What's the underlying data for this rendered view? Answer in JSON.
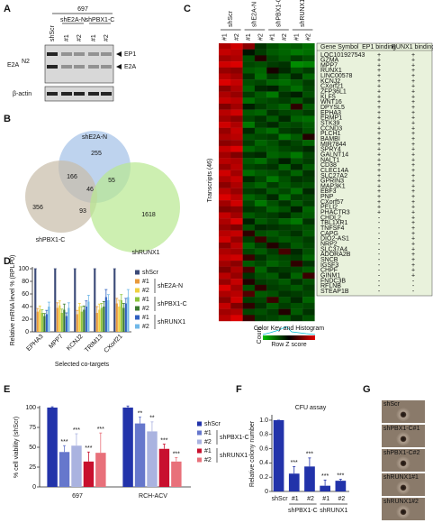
{
  "panel_labels": [
    "A",
    "B",
    "C",
    "D",
    "E",
    "F",
    "G"
  ],
  "blot": {
    "cell_line": "697",
    "lanes": [
      "shScr",
      "#1",
      "#2",
      "#1",
      "#2"
    ],
    "groups": [
      "shE2A-N",
      "shPBX1-C"
    ],
    "protein": "E2A",
    "protein_sup": "N2",
    "bands": [
      "EP1",
      "E2A"
    ],
    "loading": "β-actin"
  },
  "venn": {
    "sets": [
      "shE2A-N",
      "shPBX1-C",
      "shRUNX1"
    ],
    "counts": [
      255,
      166,
      55,
      46,
      356,
      93,
      1618
    ]
  },
  "heatmap": {
    "groups": [
      "shScr",
      "shE2A-N",
      "shPBX1-C",
      "shRUNX1"
    ],
    "replicates": [
      "#1",
      "#2",
      "#1",
      "#2",
      "#1",
      "#2",
      "#1",
      "#2"
    ],
    "ylabel": "Transcripts (46)",
    "key_title": "Color Key and Histogram",
    "key_ylabel": "Count",
    "key_xlabel": "Row Z score",
    "values": [
      [
        1.5,
        1.8,
        1.2,
        -0.5,
        -0.8,
        -1.0,
        -0.9,
        -1.1
      ],
      [
        1.7,
        1.6,
        -0.2,
        -0.6,
        -0.9,
        -1.0,
        -1.2,
        -1.1
      ],
      [
        1.4,
        1.5,
        -0.8,
        0.3,
        -0.7,
        -0.9,
        -0.6,
        -0.8
      ],
      [
        1.8,
        1.9,
        -0.7,
        -0.8,
        -0.6,
        -0.5,
        -1.4,
        -1.3
      ],
      [
        1.3,
        1.2,
        -0.9,
        -1.0,
        0.2,
        -0.4,
        -0.8,
        -0.6
      ],
      [
        1.6,
        1.4,
        -0.5,
        -1.1,
        -0.6,
        -0.9,
        -0.4,
        -1.0
      ],
      [
        1.9,
        1.7,
        -0.8,
        -0.7,
        -1.0,
        -1.1,
        -0.9,
        -0.6
      ],
      [
        1.2,
        1.5,
        -1.0,
        -0.4,
        -0.3,
        -0.8,
        -1.1,
        -0.7
      ],
      [
        1.5,
        1.3,
        -0.6,
        -0.9,
        -1.2,
        -0.5,
        -0.3,
        -0.8
      ],
      [
        1.7,
        1.6,
        -1.1,
        -0.8,
        -0.7,
        -0.6,
        -0.9,
        -0.5
      ],
      [
        1.1,
        1.4,
        -0.3,
        -0.6,
        -0.8,
        -1.0,
        0.4,
        -0.9
      ],
      [
        1.6,
        1.8,
        -0.9,
        -1.0,
        -0.5,
        -0.7,
        -0.8,
        -0.6
      ],
      [
        1.4,
        1.2,
        -0.7,
        -0.5,
        -0.9,
        -0.4,
        -1.0,
        -1.1
      ],
      [
        1.8,
        1.5,
        -1.2,
        -0.6,
        -0.4,
        -0.8,
        -0.7,
        -0.9
      ],
      [
        1.3,
        1.7,
        -0.4,
        -0.9,
        -1.1,
        -0.6,
        -0.5,
        -0.8
      ],
      [
        1.5,
        1.6,
        -0.8,
        -0.7,
        -0.6,
        -1.2,
        -0.9,
        0.3
      ],
      [
        1.2,
        1.3,
        -0.6,
        -1.0,
        -0.8,
        -0.5,
        -0.7,
        -1.0
      ],
      [
        1.7,
        1.9,
        -1.0,
        -0.8,
        -0.9,
        -0.7,
        -0.6,
        -0.4
      ],
      [
        1.4,
        1.1,
        -0.5,
        -0.4,
        -1.0,
        -0.9,
        -1.2,
        -0.7
      ],
      [
        1.6,
        1.5,
        -0.9,
        -1.1,
        -0.7,
        -0.3,
        -0.8,
        -0.6
      ],
      [
        1.3,
        1.6,
        -0.7,
        -0.6,
        -0.5,
        -1.0,
        -0.4,
        -0.9
      ],
      [
        1.8,
        1.4,
        -1.1,
        -0.9,
        -0.8,
        -0.6,
        -1.0,
        -0.5
      ],
      [
        1.5,
        1.7,
        -0.4,
        -0.7,
        -1.2,
        -0.8,
        -0.5,
        -0.6
      ],
      [
        1.2,
        1.5,
        -0.8,
        -1.0,
        -0.6,
        -0.9,
        -0.7,
        -0.8
      ],
      [
        1.6,
        1.3,
        -0.6,
        -0.5,
        -0.9,
        -0.7,
        -1.1,
        -0.4
      ],
      [
        1.9,
        1.6,
        -1.0,
        -0.8,
        -0.4,
        -1.1,
        -0.6,
        -0.7
      ],
      [
        1.4,
        1.8,
        -0.7,
        -1.2,
        -0.8,
        -0.5,
        -0.9,
        -0.6
      ],
      [
        1.1,
        1.2,
        -0.5,
        -0.6,
        -1.0,
        -0.8,
        -0.3,
        -1.0
      ],
      [
        1.7,
        1.4,
        -0.9,
        -0.7,
        -0.6,
        -0.4,
        -0.8,
        -0.9
      ],
      [
        1.5,
        1.9,
        -0.3,
        -0.9,
        -0.7,
        -1.0,
        -1.2,
        -0.5
      ],
      [
        1.3,
        1.1,
        -0.8,
        -0.4,
        -0.5,
        -0.6,
        -0.7,
        -0.8
      ],
      [
        1.6,
        1.7,
        0.4,
        -0.8,
        -0.9,
        -0.7,
        -0.5,
        -0.9
      ],
      [
        1.8,
        1.3,
        -0.6,
        0.5,
        -0.7,
        -0.9,
        -0.8,
        -0.6
      ],
      [
        1.2,
        1.6,
        -1.0,
        -0.6,
        0.3,
        -0.5,
        -0.9,
        -0.7
      ],
      [
        1.5,
        1.4,
        -0.7,
        -0.9,
        -0.6,
        0.6,
        -0.4,
        -0.8
      ],
      [
        1.7,
        1.8,
        0.5,
        -0.5,
        -0.8,
        -0.7,
        -0.6,
        -1.0
      ],
      [
        1.4,
        1.2,
        -0.9,
        -0.7,
        -1.0,
        -0.8,
        0.4,
        -0.5
      ],
      [
        1.1,
        1.5,
        0.6,
        -1.0,
        -0.5,
        -0.6,
        -0.7,
        -0.9
      ],
      [
        1.6,
        1.3,
        -0.5,
        -0.8,
        -0.9,
        -0.4,
        -1.0,
        0.5
      ],
      [
        1.3,
        1.7,
        0.3,
        -0.6,
        -0.7,
        -0.9,
        -0.5,
        -0.8
      ],
      [
        1.9,
        1.4,
        -0.8,
        0.4,
        -0.6,
        -0.7,
        -0.9,
        -0.6
      ],
      [
        1.5,
        1.6,
        0.7,
        -0.9,
        -0.8,
        -0.5,
        -0.6,
        -0.7
      ],
      [
        1.2,
        1.8,
        -0.6,
        -0.7,
        0.5,
        -0.8,
        -0.4,
        -1.0
      ],
      [
        1.7,
        1.1,
        0.4,
        -0.5,
        -0.9,
        -0.6,
        -0.8,
        -0.7
      ],
      [
        1.4,
        1.5,
        -0.7,
        -0.8,
        -0.6,
        0.3,
        -0.9,
        -0.5
      ],
      [
        1.6,
        1.9,
        0.5,
        -0.6,
        -0.7,
        -0.9,
        -0.5,
        -0.8
      ]
    ]
  },
  "gene_table": {
    "header": [
      "Gene Symbol",
      "EP1 binding",
      "RUNX1 binding"
    ],
    "rows": [
      [
        "LOC101927543",
        "+",
        "+"
      ],
      [
        "GZMA",
        "+",
        "+"
      ],
      [
        "MPP7",
        "+",
        "+"
      ],
      [
        "RUNX1",
        "+",
        "+"
      ],
      [
        "LINC00578",
        "+",
        "+"
      ],
      [
        "KCNJ2",
        "+",
        "+"
      ],
      [
        "CXorf21",
        "+",
        "+"
      ],
      [
        "ZFP36L1",
        "+",
        "+"
      ],
      [
        "KLF5",
        "+",
        "+"
      ],
      [
        "WNT16",
        "+",
        "+"
      ],
      [
        "DPYSL5",
        "+",
        "+"
      ],
      [
        "EPHA3",
        "+",
        "+"
      ],
      [
        "ERMP1",
        "+",
        "+"
      ],
      [
        "STK39",
        "+",
        "+"
      ],
      [
        "CCND3",
        "+",
        "+"
      ],
      [
        "PLCH1",
        "+",
        "+"
      ],
      [
        "BAMBI",
        "+",
        "+"
      ],
      [
        "MIR7844",
        "+",
        "+"
      ],
      [
        "SPRY4",
        "+",
        "+"
      ],
      [
        "GALNT14",
        "+",
        "+"
      ],
      [
        "NALT1",
        "+",
        "+"
      ],
      [
        "CD38",
        "+",
        "+"
      ],
      [
        "CLEC14A",
        "+",
        "+"
      ],
      [
        "SLC27A2",
        "+",
        "+"
      ],
      [
        "GPRIN3",
        "+",
        "+"
      ],
      [
        "MAP3K1",
        "+",
        "+"
      ],
      [
        "EBF3",
        "+",
        "+"
      ],
      [
        "PNP",
        "+",
        "+"
      ],
      [
        "CXorf57",
        "+",
        "+"
      ],
      [
        "PELI2",
        "+",
        "+"
      ],
      [
        "PHACTR3",
        "+",
        "+"
      ],
      [
        "CHDL2",
        "-",
        "+"
      ],
      [
        "TBL1XR1",
        "-",
        "+"
      ],
      [
        "TNFSF4",
        "-",
        "+"
      ],
      [
        "CAPG",
        "-",
        "+"
      ],
      [
        "DIO2-AS1",
        "-",
        "+"
      ],
      [
        "NRP2",
        "-",
        "+"
      ],
      [
        "SLC37A4",
        "-",
        "+"
      ],
      [
        "ADORA2B",
        "-",
        "+"
      ],
      [
        "SNCB",
        "-",
        "+"
      ],
      [
        "IGSF3",
        "-",
        "+"
      ],
      [
        "CHPF",
        "-",
        "+"
      ],
      [
        "GINM1",
        "-",
        "+"
      ],
      [
        "FNDC3B",
        "-",
        "-"
      ],
      [
        "RFLNB",
        "-",
        "-"
      ],
      [
        "STEAP1B",
        "-",
        "-"
      ]
    ]
  },
  "images": {
    "labels": [
      "shScr",
      "shPBX1-C#1",
      "shPBX1-C#2",
      "shRUNX1#1",
      "shRUNX1#2"
    ]
  },
  "chart_data": [
    {
      "type": "bar",
      "ylabel": "Relative mRNA level % (RPLP0)",
      "xlabel": "Selected co-targets",
      "categories": [
        "EPHA3",
        "MPP7",
        "KCNJ2",
        "TRIM13",
        "CXorf21"
      ],
      "ylim": [
        0,
        100
      ],
      "yticks": [
        0,
        20,
        40,
        60,
        80,
        100
      ],
      "legend_groups": [
        "shE2A-N",
        "shPBX1-C",
        "shRUNX1"
      ],
      "series": [
        {
          "name": "shScr",
          "color": "#3b4a78",
          "values": [
            100,
            100,
            100,
            100,
            100
          ],
          "errors": [
            0,
            0,
            0,
            0,
            0
          ]
        },
        {
          "name": "#1",
          "color": "#e89a3c",
          "values": [
            32,
            38,
            28,
            30,
            45
          ],
          "errors": [
            5,
            8,
            6,
            10,
            8
          ]
        },
        {
          "name": "#2",
          "color": "#f0d040",
          "values": [
            35,
            42,
            40,
            35,
            40
          ],
          "errors": [
            6,
            7,
            5,
            9,
            10
          ]
        },
        {
          "name": "#1",
          "color": "#8cc43c",
          "values": [
            30,
            30,
            32,
            38,
            50
          ],
          "errors": [
            5,
            6,
            8,
            7,
            9
          ]
        },
        {
          "name": "#2",
          "color": "#3c7a30",
          "values": [
            25,
            35,
            35,
            40,
            38
          ],
          "errors": [
            4,
            9,
            6,
            8,
            7
          ]
        },
        {
          "name": "#1",
          "color": "#3060c0",
          "values": [
            28,
            25,
            40,
            55,
            45
          ],
          "errors": [
            6,
            5,
            9,
            12,
            8
          ]
        },
        {
          "name": "#2",
          "color": "#70b8e8",
          "values": [
            40,
            38,
            48,
            50,
            55
          ],
          "errors": [
            7,
            8,
            10,
            9,
            12
          ]
        }
      ]
    },
    {
      "type": "bar",
      "ylabel": "% cell viability (shScr)",
      "categories": [
        "697",
        "RCH-ACV"
      ],
      "ylim": [
        0,
        100
      ],
      "yticks": [
        0,
        25,
        50,
        75,
        100
      ],
      "legend_groups": [
        "shPBX1-C",
        "shRUNX1"
      ],
      "series": [
        {
          "name": "shScr",
          "color": "#2233aa",
          "values": [
            100,
            100
          ],
          "errors": [
            1,
            2
          ],
          "sig": [
            null,
            null
          ]
        },
        {
          "name": "#1",
          "color": "#6677cc",
          "values": [
            44,
            80
          ],
          "errors": [
            8,
            8
          ],
          "sig": [
            "***",
            "**"
          ]
        },
        {
          "name": "#2",
          "color": "#aab3e0",
          "values": [
            52,
            70
          ],
          "errors": [
            15,
            12
          ],
          "sig": [
            "***",
            "**"
          ]
        },
        {
          "name": "#1",
          "color": "#c8102e",
          "values": [
            32,
            48
          ],
          "errors": [
            12,
            6
          ],
          "sig": [
            "***",
            "***"
          ]
        },
        {
          "name": "#2",
          "color": "#e8707a",
          "values": [
            43,
            32
          ],
          "errors": [
            25,
            5
          ],
          "sig": [
            "***",
            "***"
          ]
        }
      ]
    },
    {
      "type": "bar",
      "title": "CFU assay",
      "ylabel": "Relative colony number",
      "categories": [
        "shScr",
        "#1",
        "#2",
        "#1",
        "#2"
      ],
      "category_groups": [
        "shPBX1-C",
        "shRUNX1"
      ],
      "values": [
        1,
        0.25,
        0.35,
        0.08,
        0.15
      ],
      "errors": [
        0,
        0.1,
        0.12,
        0.08,
        0.02
      ],
      "sig": [
        null,
        "***",
        "***",
        "***",
        "***"
      ],
      "color": "#2233aa",
      "ylim": [
        0,
        1.05
      ],
      "yticks": [
        0,
        0.2,
        0.4,
        0.6,
        0.8,
        {
          "value": 1,
          "label": "1.0"
        }
      ]
    }
  ]
}
